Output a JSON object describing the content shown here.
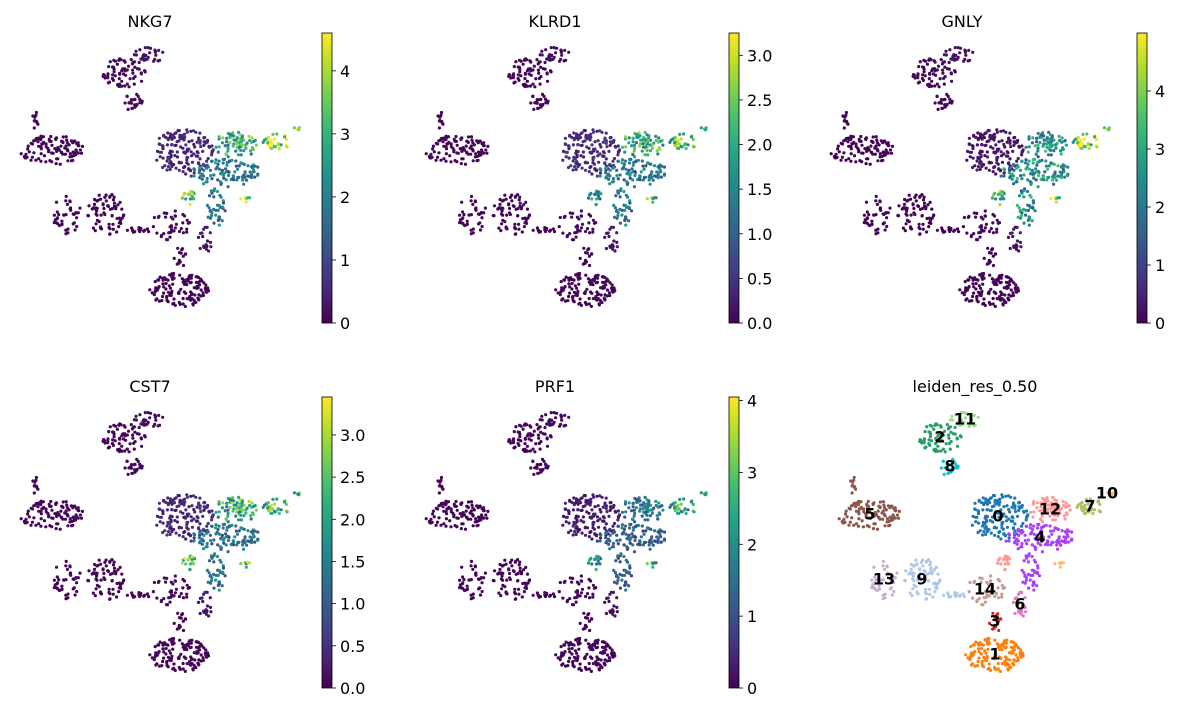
{
  "chart_data": [
    {
      "type": "scatter",
      "title": "NKG7",
      "colorbar": {
        "cmap": "viridis",
        "min": 0,
        "max": 4.6,
        "ticks": [
          "0",
          "1",
          "2",
          "3",
          "4"
        ]
      },
      "expression_by_cluster": {
        "0": 0.5,
        "1": 0.05,
        "2": 0.1,
        "3": 0.05,
        "4": 1.8,
        "5": 0.05,
        "6": 0.3,
        "7": 4.2,
        "8": 0.1,
        "9": 0.05,
        "10": 4.0,
        "11": 0.2,
        "12": 2.8,
        "12b": 3.6,
        "13": 0.05,
        "14": 0.1
      }
    },
    {
      "type": "scatter",
      "title": "KLRD1",
      "colorbar": {
        "cmap": "viridis",
        "min": 0,
        "max": 3.25,
        "ticks": [
          "0.0",
          "0.5",
          "1.0",
          "1.5",
          "2.0",
          "2.5",
          "3.0"
        ]
      },
      "expression_by_cluster": {
        "0": 0.4,
        "1": 0.05,
        "2": 0.05,
        "3": 0.05,
        "4": 1.3,
        "5": 0.05,
        "6": 0.2,
        "7": 2.3,
        "8": 0.05,
        "9": 0.05,
        "10": 2.0,
        "11": 0.1,
        "12": 2.0,
        "12b": 1.6,
        "13": 0.05,
        "14": 0.1
      }
    },
    {
      "type": "scatter",
      "title": "GNLY",
      "colorbar": {
        "cmap": "viridis",
        "min": 0,
        "max": 5.0,
        "ticks": [
          "0",
          "1",
          "2",
          "3",
          "4"
        ]
      },
      "expression_by_cluster": {
        "0": 0.3,
        "1": 0.05,
        "2": 0.1,
        "3": 0.05,
        "4": 2.5,
        "5": 0.05,
        "6": 0.3,
        "7": 4.5,
        "8": 0.1,
        "9": 0.05,
        "10": 4.0,
        "11": 0.2,
        "12": 2.5,
        "12b": 3.2,
        "13": 0.05,
        "14": 0.1
      }
    },
    {
      "type": "scatter",
      "title": "CST7",
      "colorbar": {
        "cmap": "viridis",
        "min": 0,
        "max": 3.45,
        "ticks": [
          "0.0",
          "0.5",
          "1.0",
          "1.5",
          "2.0",
          "2.5",
          "3.0"
        ]
      },
      "expression_by_cluster": {
        "0": 0.4,
        "1": 0.05,
        "2": 0.05,
        "3": 0.05,
        "4": 1.3,
        "5": 0.05,
        "6": 0.2,
        "7": 2.4,
        "8": 0.05,
        "9": 0.05,
        "10": 2.2,
        "11": 0.1,
        "12": 2.1,
        "12b": 2.4,
        "13": 0.05,
        "14": 0.1
      }
    },
    {
      "type": "scatter",
      "title": "PRF1",
      "colorbar": {
        "cmap": "viridis",
        "min": 0,
        "max": 4.05,
        "ticks": [
          "0",
          "1",
          "2",
          "3",
          "4"
        ]
      },
      "expression_by_cluster": {
        "0": 0.3,
        "1": 0.05,
        "2": 0.05,
        "3": 0.05,
        "4": 1.2,
        "5": 0.05,
        "6": 0.2,
        "7": 2.5,
        "8": 0.05,
        "9": 0.05,
        "10": 2.2,
        "11": 0.1,
        "12": 1.6,
        "12b": 2.0,
        "13": 0.05,
        "14": 0.1
      }
    },
    {
      "type": "scatter",
      "title": "leiden_res_0.50",
      "clusters": [
        {
          "id": "0",
          "color": "#1f77b4"
        },
        {
          "id": "1",
          "color": "#ff7f0e"
        },
        {
          "id": "2",
          "color": "#279e68"
        },
        {
          "id": "3",
          "color": "#d62728"
        },
        {
          "id": "4",
          "color": "#aa40fc"
        },
        {
          "id": "5",
          "color": "#8c564b"
        },
        {
          "id": "6",
          "color": "#e377c2"
        },
        {
          "id": "7",
          "color": "#b5bd61"
        },
        {
          "id": "8",
          "color": "#17becf"
        },
        {
          "id": "9",
          "color": "#aec7e8"
        },
        {
          "id": "10",
          "color": "#ffbb78"
        },
        {
          "id": "11",
          "color": "#98df8a"
        },
        {
          "id": "12",
          "color": "#ff9896"
        },
        {
          "id": "13",
          "color": "#c5b0d5"
        },
        {
          "id": "14",
          "color": "#c49c94"
        }
      ]
    }
  ]
}
